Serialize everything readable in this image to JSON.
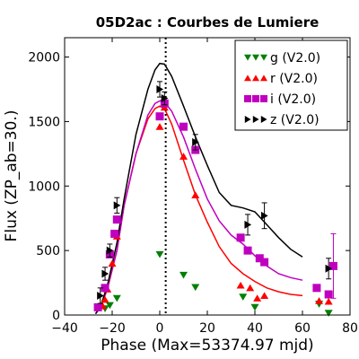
{
  "chart_data": {
    "type": "scatter",
    "title": "05D2ac : Courbes de Lumiere",
    "xlabel": "Phase (Max=53374.97 mjd)",
    "ylabel": "Flux (ZP_ab=30.)",
    "xlim": [
      -40,
      80
    ],
    "ylim": [
      0,
      2150
    ],
    "xticks": [
      -40,
      -20,
      0,
      20,
      40,
      60,
      80
    ],
    "yticks": [
      0,
      500,
      1000,
      1500,
      2000
    ],
    "max_phase_line": 2.5,
    "legend_position": "top-right",
    "series": [
      {
        "name": "g (V2.0)",
        "color": "#008000",
        "marker": "triangle-down",
        "points": [
          [
            -23,
            50
          ],
          [
            -21,
            75
          ],
          [
            -18,
            130
          ],
          [
            0,
            470
          ],
          [
            10,
            310
          ],
          [
            15,
            215
          ],
          [
            35,
            140
          ],
          [
            40,
            60
          ],
          [
            67,
            85
          ],
          [
            71,
            15
          ]
        ]
      },
      {
        "name": "r (V2.0)",
        "color": "#ff0000",
        "marker": "triangle-up",
        "points": [
          [
            -24,
            70
          ],
          [
            -23,
            120
          ],
          [
            -22,
            200
          ],
          [
            -20,
            400
          ],
          [
            -18,
            610
          ],
          [
            0,
            1460
          ],
          [
            2,
            1610
          ],
          [
            10,
            1230
          ],
          [
            15,
            930
          ],
          [
            34,
            230
          ],
          [
            38,
            210
          ],
          [
            41,
            130
          ],
          [
            44,
            150
          ],
          [
            67,
            110
          ],
          [
            71,
            105
          ]
        ]
      },
      {
        "name": "i (V2.0)",
        "color": "#bf00bf",
        "marker": "square",
        "points": [
          [
            -26,
            60
          ],
          [
            -23,
            210
          ],
          [
            -21,
            470
          ],
          [
            -19,
            630
          ],
          [
            -18,
            740
          ],
          [
            0,
            1540
          ],
          [
            2,
            1640
          ],
          [
            10,
            1460
          ],
          [
            15,
            1280
          ],
          [
            34,
            600
          ],
          [
            37,
            500
          ],
          [
            42,
            440
          ],
          [
            44,
            410
          ],
          [
            66,
            210
          ],
          [
            71,
            160
          ],
          [
            73,
            380
          ]
        ],
        "errors": [
          [
            73,
            380,
            250
          ]
        ]
      },
      {
        "name": "z (V2.0)",
        "color": "#000000",
        "marker": "triangle-right",
        "points": [
          [
            -25,
            150
          ],
          [
            -23,
            320
          ],
          [
            -21,
            500
          ],
          [
            -18,
            850
          ],
          [
            0,
            1750
          ],
          [
            2,
            1680
          ],
          [
            15,
            1340
          ],
          [
            37,
            700
          ],
          [
            44,
            770
          ],
          [
            71,
            360
          ]
        ],
        "errors": [
          [
            -25,
            150,
            60
          ],
          [
            -23,
            320,
            50
          ],
          [
            -21,
            500,
            50
          ],
          [
            -18,
            850,
            60
          ],
          [
            0,
            1750,
            60
          ],
          [
            2,
            1680,
            50
          ],
          [
            15,
            1340,
            60
          ],
          [
            37,
            700,
            80
          ],
          [
            44,
            770,
            100
          ],
          [
            71,
            360,
            80
          ]
        ]
      }
    ],
    "fits": [
      {
        "band": "r",
        "color": "#ff0000",
        "points": [
          [
            -27,
            10
          ],
          [
            -25,
            60
          ],
          [
            -22,
            200
          ],
          [
            -18,
            500
          ],
          [
            -15,
            850
          ],
          [
            -10,
            1250
          ],
          [
            -5,
            1520
          ],
          [
            -2,
            1600
          ],
          [
            0,
            1620
          ],
          [
            2,
            1600
          ],
          [
            5,
            1480
          ],
          [
            10,
            1200
          ],
          [
            15,
            930
          ],
          [
            20,
            720
          ],
          [
            25,
            530
          ],
          [
            30,
            400
          ],
          [
            35,
            320
          ],
          [
            40,
            260
          ],
          [
            45,
            210
          ],
          [
            50,
            180
          ],
          [
            55,
            160
          ],
          [
            60,
            150
          ]
        ]
      },
      {
        "band": "i",
        "color": "#bf00bf",
        "points": [
          [
            -27,
            10
          ],
          [
            -25,
            60
          ],
          [
            -22,
            210
          ],
          [
            -18,
            500
          ],
          [
            -15,
            850
          ],
          [
            -10,
            1250
          ],
          [
            -5,
            1550
          ],
          [
            -2,
            1640
          ],
          [
            0,
            1660
          ],
          [
            2,
            1650
          ],
          [
            5,
            1580
          ],
          [
            10,
            1380
          ],
          [
            15,
            1130
          ],
          [
            20,
            900
          ],
          [
            25,
            730
          ],
          [
            30,
            620
          ],
          [
            35,
            550
          ],
          [
            40,
            460
          ],
          [
            45,
            380
          ],
          [
            50,
            320
          ],
          [
            55,
            290
          ],
          [
            60,
            270
          ]
        ]
      },
      {
        "band": "z",
        "color": "#000000",
        "points": [
          [
            -27,
            10
          ],
          [
            -25,
            60
          ],
          [
            -22,
            230
          ],
          [
            -18,
            560
          ],
          [
            -15,
            900
          ],
          [
            -10,
            1400
          ],
          [
            -5,
            1750
          ],
          [
            -2,
            1900
          ],
          [
            0,
            1950
          ],
          [
            2,
            1945
          ],
          [
            5,
            1850
          ],
          [
            10,
            1620
          ],
          [
            15,
            1380
          ],
          [
            20,
            1160
          ],
          [
            25,
            950
          ],
          [
            30,
            850
          ],
          [
            35,
            830
          ],
          [
            40,
            800
          ],
          [
            45,
            700
          ],
          [
            50,
            600
          ],
          [
            55,
            510
          ],
          [
            60,
            450
          ]
        ]
      }
    ]
  }
}
